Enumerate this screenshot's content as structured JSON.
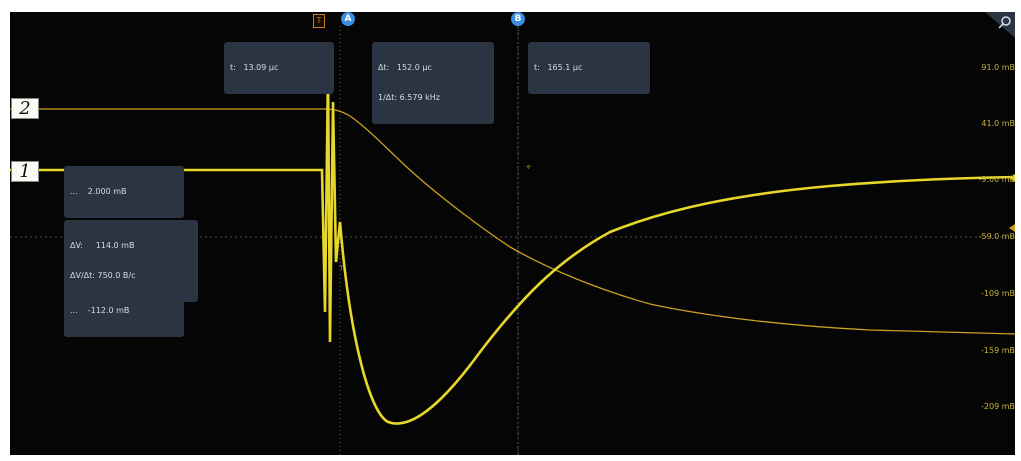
{
  "scope": {
    "channels": [
      {
        "label": "2",
        "color": "#c9a021"
      },
      {
        "label": "1",
        "color": "#e6d72a"
      }
    ],
    "cursors": {
      "a_label": "A",
      "b_label": "B",
      "trigger_label": "T",
      "a_color": "#3a8ee0",
      "b_color": "#3a8ee0"
    },
    "readouts": {
      "t_a": "t:   13.09 µc",
      "delta_t": "Δt:   152.0 µc",
      "inv_delta_t": "1/Δt: 6.579 kHz",
      "t_b": "t:   165.1 µc",
      "v_a": "...    2.000 mB",
      "delta_v": "ΔV:     114.0 mB",
      "dv_dt": "ΔV/Δt: 750.0 B/c",
      "v_b": "...    -112.0 mB"
    },
    "scale_labels": [
      "91.0 mB",
      "41.0 mB",
      "-9.00 mB",
      "-59.0 mB",
      "-109 mB",
      "-159 mB",
      "-209 mB"
    ],
    "colors": {
      "background": "#050505",
      "grid": "#3a3a3a",
      "readout_bg": "#2a3442",
      "scale_text": "#c9b23a"
    }
  }
}
